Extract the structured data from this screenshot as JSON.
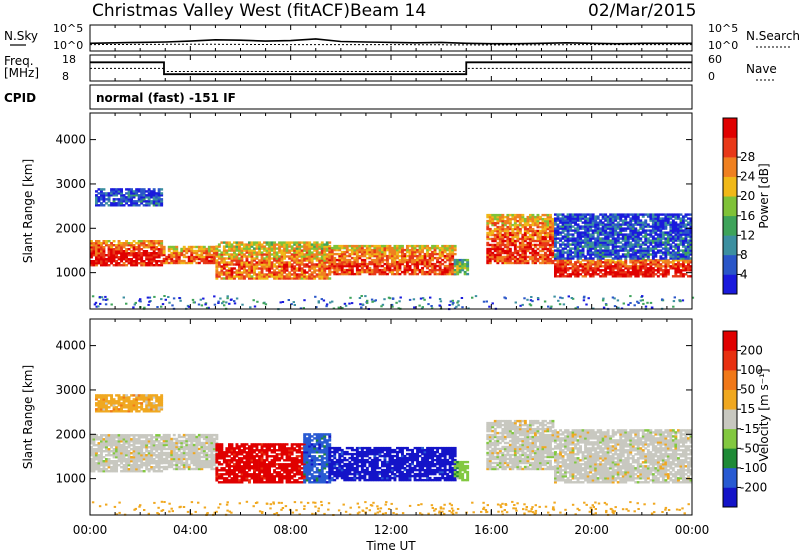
{
  "header": {
    "station_title": "Christmas Valley West (fitACF)",
    "beam": "Beam 14",
    "date": "02/Mar/2015"
  },
  "chart_data": [
    {
      "type": "line",
      "panel": "noise",
      "left_label": "N.Sky",
      "right_label": "N.Search",
      "left_ticks": [
        "10^5",
        "10^0"
      ],
      "right_ticks": [
        "10^5",
        "10^0"
      ],
      "xlim": [
        0,
        24
      ],
      "series": [
        {
          "name": "N.Sky",
          "x": [
            0,
            1,
            2,
            3,
            4,
            5,
            6,
            7,
            8,
            9,
            10,
            11,
            12,
            13,
            14,
            15,
            16,
            17,
            18,
            19,
            20,
            21,
            22,
            23,
            24
          ],
          "y": [
            1.3,
            1.4,
            1.5,
            1.6,
            1.8,
            2.1,
            2.0,
            1.8,
            1.9,
            2.3,
            1.7,
            1.6,
            1.5,
            1.4,
            1.5,
            1.3,
            1.2,
            1.2,
            1.3,
            1.4,
            1.3,
            1.2,
            1.3,
            1.3,
            1.3
          ]
        },
        {
          "name": "N.Search",
          "x": [
            0,
            4,
            8,
            12,
            16,
            20,
            24
          ],
          "y": [
            1.0,
            1.1,
            1.0,
            1.0,
            0.9,
            1.0,
            1.0
          ]
        }
      ]
    },
    {
      "type": "line",
      "panel": "frequency",
      "left_label": "Freq.",
      "left_label2": "[MHz]",
      "right_label": "Nave",
      "left_ticks": [
        "18",
        "8"
      ],
      "right_ticks": [
        "60",
        "0"
      ],
      "xlim": [
        0,
        24
      ],
      "ylim": [
        8,
        18
      ],
      "series": [
        {
          "name": "Freq.",
          "x": [
            0,
            2.95,
            2.95,
            15.0,
            15.0,
            24
          ],
          "y": [
            15.6,
            15.6,
            10.2,
            10.2,
            15.6,
            15.6
          ]
        },
        {
          "name": "Nave",
          "x": [
            0,
            2.95,
            2.95,
            15.0,
            15.0,
            24
          ],
          "y": [
            12.8,
            12.8,
            11.4,
            11.4,
            12.8,
            12.8
          ]
        }
      ]
    },
    {
      "type": "text",
      "panel": "cpid",
      "label": "CPID",
      "value": "normal (fast) -151 IF"
    },
    {
      "type": "heatmap",
      "panel": "power",
      "ylabel": "Slant Range [km]",
      "ylim": [
        180,
        4600
      ],
      "yticks": [
        "1000",
        "2000",
        "3000",
        "4000"
      ],
      "xlim": [
        0,
        24
      ],
      "colorbar_label": "Power [dB]",
      "colorbar_ticks": [
        "4",
        "8",
        "12",
        "16",
        "20",
        "24",
        "28"
      ],
      "colors": [
        "#1a1adc",
        "#2a56c8",
        "#3c8fa0",
        "#3ea35a",
        "#7fc238",
        "#f0b818",
        "#ef8020",
        "#e83818",
        "#e00000"
      ],
      "bands": [
        {
          "x0": 0.0,
          "x1": 2.9,
          "lo": 1150,
          "hi": 1700,
          "peak": 1,
          "spread": 0.35
        },
        {
          "x0": 0.2,
          "x1": 2.9,
          "lo": 2500,
          "hi": 2900,
          "peak": 0.15,
          "spread": 0.1
        },
        {
          "x0": 2.9,
          "x1": 5.0,
          "lo": 1200,
          "hi": 1600,
          "peak": 0.85,
          "spread": 0.35
        },
        {
          "x0": 5.0,
          "x1": 9.5,
          "lo": 850,
          "hi": 1700,
          "peak": 0.8,
          "spread": 0.3
        },
        {
          "x0": 9.5,
          "x1": 14.5,
          "lo": 950,
          "hi": 1600,
          "peak": 0.9,
          "spread": 0.35
        },
        {
          "x0": 14.5,
          "x1": 15.0,
          "lo": 950,
          "hi": 1300,
          "peak": 0.5,
          "spread": 0.25
        },
        {
          "x0": 15.8,
          "x1": 18.5,
          "lo": 1200,
          "hi": 2300,
          "peak": 0.9,
          "spread": 0.35
        },
        {
          "x0": 18.5,
          "x1": 24.0,
          "lo": 900,
          "hi": 1300,
          "peak": 1,
          "spread": 0.4
        },
        {
          "x0": 18.5,
          "x1": 24.0,
          "lo": 1300,
          "hi": 2300,
          "peak": 0.15,
          "spread": 0.1
        }
      ]
    },
    {
      "type": "heatmap",
      "panel": "velocity",
      "ylabel": "Slant Range [km]",
      "ylim": [
        180,
        4600
      ],
      "yticks": [
        "1000",
        "2000",
        "3000",
        "4000"
      ],
      "xlim": [
        0,
        24
      ],
      "xticks": [
        "00:00",
        "04:00",
        "08:00",
        "12:00",
        "16:00",
        "20:00",
        "00:00"
      ],
      "xlabel": "Time UT",
      "colorbar_label": "Velocity [m s⁻¹]",
      "colorbar_ticks": [
        "200",
        "100",
        "50",
        "15",
        "-15",
        "-50",
        "-100",
        "-200"
      ],
      "colors": [
        "#1414c8",
        "#285ad2",
        "#1e8a36",
        "#82c840",
        "#c8c8c0",
        "#f0a820",
        "#f07818",
        "#e83010",
        "#e00000"
      ],
      "bands": [
        {
          "x0": 0.0,
          "x1": 2.9,
          "lo": 1150,
          "hi": 2000,
          "color": 4
        },
        {
          "x0": 0.2,
          "x1": 2.9,
          "lo": 2500,
          "hi": 2900,
          "color": 5
        },
        {
          "x0": 2.9,
          "x1": 5.0,
          "lo": 1200,
          "hi": 2000,
          "color": 4
        },
        {
          "x0": 5.0,
          "x1": 8.5,
          "lo": 900,
          "hi": 1800,
          "color": 8
        },
        {
          "x0": 8.5,
          "x1": 9.5,
          "lo": 900,
          "hi": 2000,
          "color": 1
        },
        {
          "x0": 9.5,
          "x1": 14.5,
          "lo": 950,
          "hi": 1700,
          "color": 0
        },
        {
          "x0": 14.5,
          "x1": 15.0,
          "lo": 950,
          "hi": 1400,
          "color": 3
        },
        {
          "x0": 15.8,
          "x1": 18.5,
          "lo": 1200,
          "hi": 2300,
          "color": 4
        },
        {
          "x0": 18.5,
          "x1": 24.0,
          "lo": 900,
          "hi": 2100,
          "color": 4
        }
      ]
    }
  ]
}
